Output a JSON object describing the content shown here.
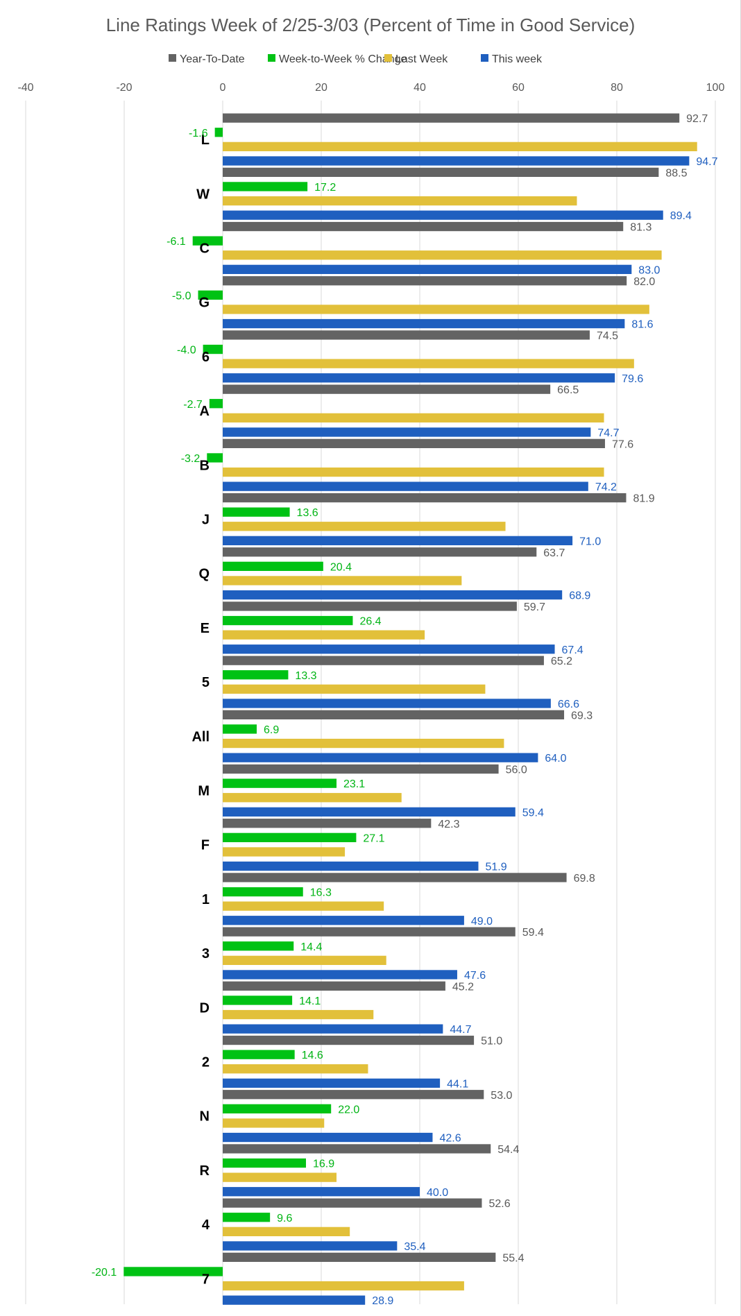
{
  "chart_data": {
    "type": "bar",
    "orientation": "horizontal",
    "title": "Line Ratings Week of 2/25-3/03 (Percent of Time in Good Service)",
    "xlim": [
      -40,
      100
    ],
    "xticks": [
      -40,
      -20,
      0,
      20,
      40,
      60,
      80,
      100
    ],
    "grid": true,
    "legend_position": "top",
    "categories": [
      "L",
      "W",
      "C",
      "G",
      "6",
      "A",
      "B",
      "J",
      "Q",
      "E",
      "5",
      "All",
      "M",
      "F",
      "1",
      "3",
      "D",
      "2",
      "N",
      "R",
      "4",
      "7"
    ],
    "series": [
      {
        "name": "Year-To-Date",
        "color": "#636363",
        "label_color": "#595959",
        "show_labels": true,
        "values": [
          92.7,
          88.5,
          81.3,
          82.0,
          74.5,
          66.5,
          77.6,
          81.9,
          63.7,
          59.7,
          65.2,
          69.3,
          56.0,
          42.3,
          69.8,
          59.4,
          45.2,
          51.0,
          53.0,
          54.4,
          52.6,
          55.4
        ],
        "labels": [
          "92.7",
          "88.5",
          "81.3",
          "82.0",
          "74.5",
          "66.5",
          "77.6",
          "81.9",
          "63.7",
          "59.7",
          "65.2",
          "69.3",
          "56.0",
          "42.3",
          "69.8",
          "59.4",
          "45.2",
          "51.0",
          "53.0",
          "54.4",
          "52.6",
          "55.4"
        ]
      },
      {
        "name": "Week-to-Week % Change",
        "color": "#00c214",
        "label_color": "#00b414",
        "show_labels": true,
        "values": [
          -1.6,
          17.2,
          -6.1,
          -5.0,
          -4.0,
          -2.7,
          -3.2,
          13.6,
          20.4,
          26.4,
          13.3,
          6.9,
          23.1,
          27.1,
          16.3,
          14.4,
          14.1,
          14.6,
          22.0,
          16.9,
          9.6,
          -20.1
        ],
        "labels": [
          "-1.6",
          "17.2",
          "-6.1",
          "-5.0",
          "-4.0",
          "-2.7",
          "-3.2",
          "13.6",
          "20.4",
          "26.4",
          "13.3",
          "6.9",
          "23.1",
          "27.1",
          "16.3",
          "14.4",
          "14.1",
          "14.6",
          "22.0",
          "16.9",
          "9.6",
          "-20.1"
        ]
      },
      {
        "name": "Last Week",
        "color": "#e2c03a",
        "label_color": "#595959",
        "show_labels": false,
        "values": [
          96.3,
          71.9,
          89.1,
          86.6,
          83.5,
          77.4,
          77.4,
          57.4,
          48.5,
          41.0,
          53.3,
          57.1,
          36.3,
          24.8,
          32.7,
          33.2,
          30.6,
          29.5,
          20.6,
          23.1,
          25.8,
          49.0
        ]
      },
      {
        "name": "This week",
        "color": "#1f5fbf",
        "label_color": "#1f5fbf",
        "show_labels": true,
        "values": [
          94.7,
          89.4,
          83.0,
          81.6,
          79.6,
          74.7,
          74.2,
          71.0,
          68.9,
          67.4,
          66.6,
          64.0,
          59.4,
          51.9,
          49.0,
          47.6,
          44.7,
          44.1,
          42.6,
          40.0,
          35.4,
          28.9
        ],
        "labels": [
          "94.7",
          "89.4",
          "83.0",
          "81.6",
          "79.6",
          "74.7",
          "74.2",
          "71.0",
          "68.9",
          "67.4",
          "66.6",
          "64.0",
          "59.4",
          "51.9",
          "49.0",
          "47.6",
          "44.7",
          "44.1",
          "42.6",
          "40.0",
          "35.4",
          "28.9"
        ]
      }
    ]
  }
}
